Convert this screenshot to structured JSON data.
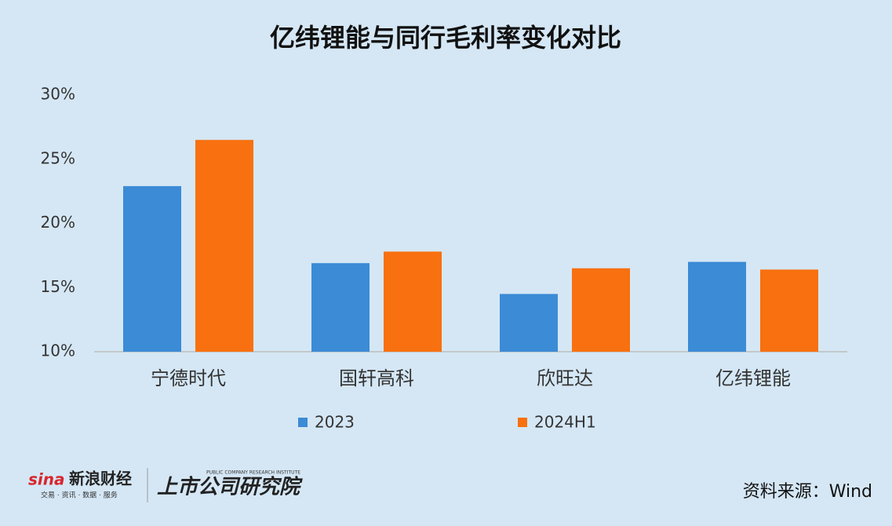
{
  "chart_data": {
    "type": "bar",
    "title": "亿纬锂能与同行毛利率变化对比",
    "categories": [
      "宁德时代",
      "国轩高科",
      "欣旺达",
      "亿纬锂能"
    ],
    "series": [
      {
        "name": "2023",
        "color": "#3b8bd6",
        "values": [
          22.9,
          16.9,
          14.5,
          17.0
        ]
      },
      {
        "name": "2024H1",
        "color": "#f8700f",
        "values": [
          26.5,
          17.8,
          16.5,
          16.4
        ]
      }
    ],
    "ylim": [
      10,
      30
    ],
    "yticks": [
      {
        "value": 10,
        "label": "10%"
      },
      {
        "value": 15,
        "label": "15%"
      },
      {
        "value": 20,
        "label": "20%"
      },
      {
        "value": 25,
        "label": "25%"
      },
      {
        "value": 30,
        "label": "30%"
      }
    ],
    "grid": false,
    "legend": "bottom",
    "source": "资料来源：Wind"
  },
  "branding": {
    "sina": "新浪财经",
    "sina_tagline": "交易 · 资讯 · 数据 · 服务",
    "institute": "上市公司研究院",
    "institute_en": "PUBLIC COMPANY RESEARCH INSTITUTE"
  }
}
